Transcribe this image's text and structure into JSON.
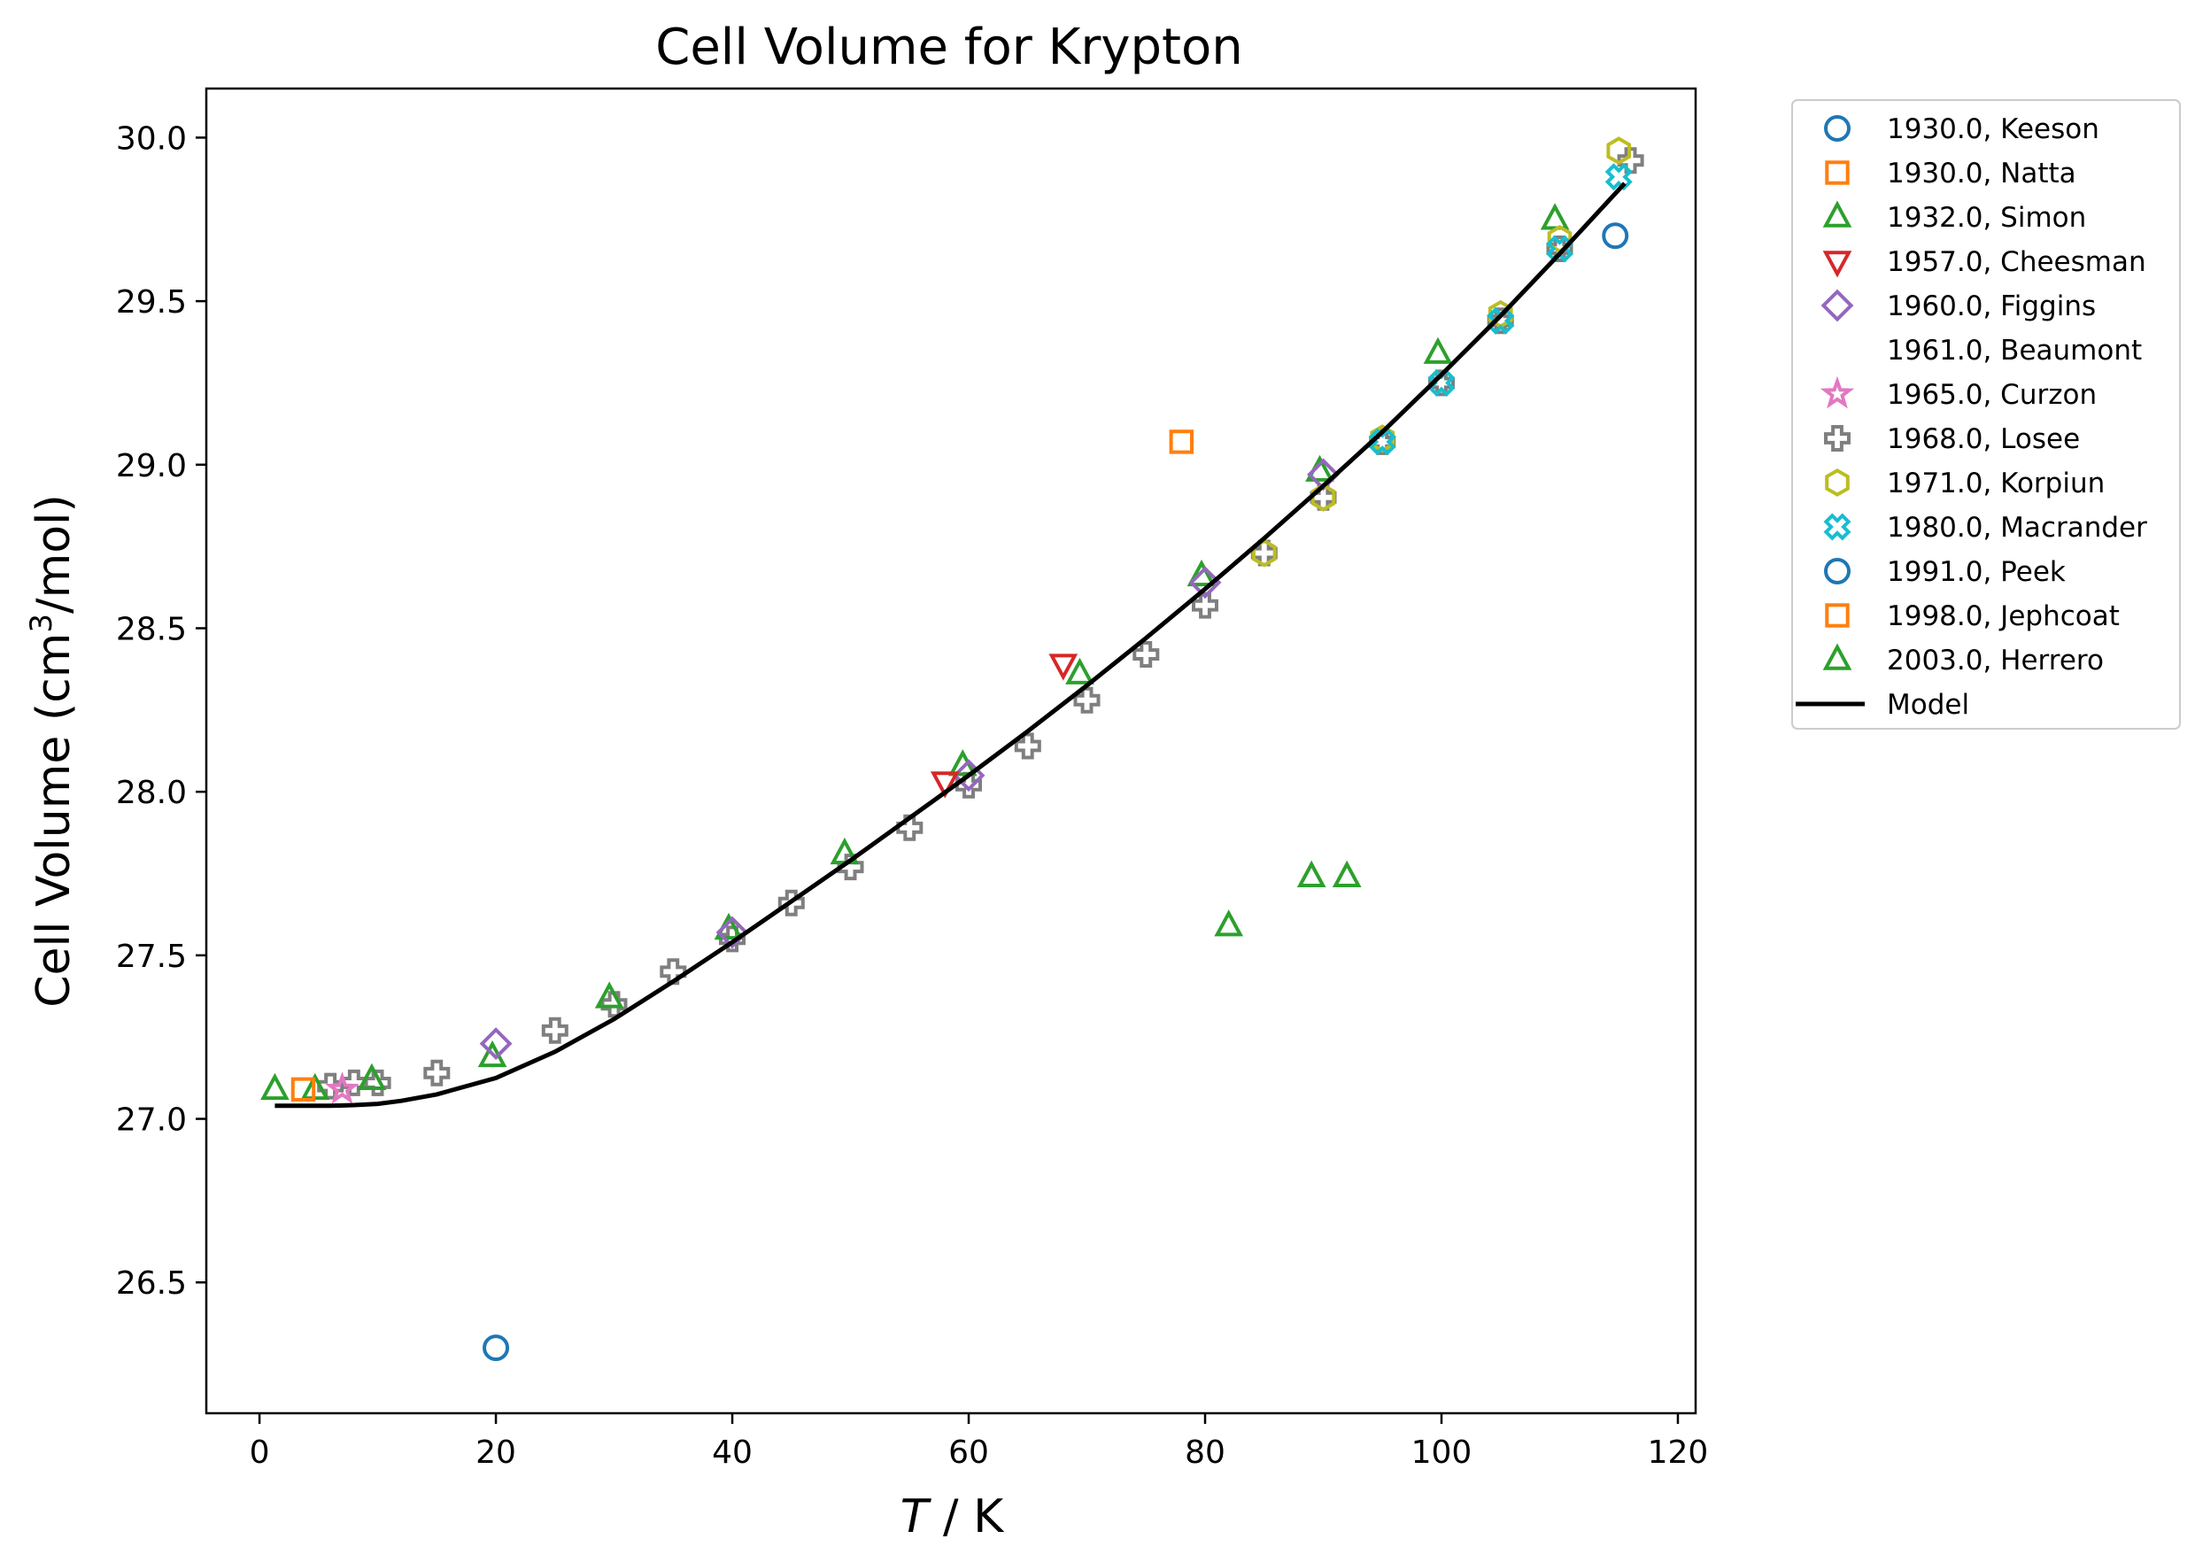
{
  "chart_data": {
    "type": "scatter",
    "title": "Cell Volume for Krypton",
    "xlabel_italic": "T",
    "xlabel_rest": " / K",
    "ylabel_main": "Cell Volume (cm",
    "ylabel_sup": "3",
    "ylabel_tail": "/mol)",
    "xlim": [
      -4.5,
      121.5
    ],
    "ylim": [
      26.1,
      30.15
    ],
    "xticks": [
      0,
      20,
      40,
      60,
      80,
      100,
      120
    ],
    "yticks": [
      26.5,
      27.0,
      27.5,
      28.0,
      28.5,
      29.0,
      29.5,
      30.0
    ],
    "xtick_labels": [
      "0",
      "20",
      "40",
      "60",
      "80",
      "100",
      "120"
    ],
    "ytick_labels": [
      "26.5",
      "27.0",
      "27.5",
      "28.0",
      "28.5",
      "29.0",
      "29.5",
      "30.0"
    ],
    "grid": false,
    "legend_position": "outside-right",
    "series": [
      {
        "name": "1930.0, Keeson",
        "marker": "circle",
        "color": "#1f77b4",
        "points": [
          [
            20,
            26.3
          ]
        ]
      },
      {
        "name": "1930.0, Natta",
        "marker": "square",
        "color": "#ff7f0e",
        "points": [
          [
            78,
            29.07
          ]
        ]
      },
      {
        "name": "1932.0, Simon",
        "marker": "triangle-up",
        "color": "#2ca02c",
        "points": [
          [
            82,
            27.59
          ],
          [
            89,
            27.74
          ],
          [
            92,
            27.74
          ]
        ]
      },
      {
        "name": "1957.0, Cheesman",
        "marker": "triangle-down",
        "color": "#d62728",
        "points": [
          [
            58,
            28.03
          ],
          [
            68,
            28.39
          ]
        ]
      },
      {
        "name": "1960.0, Figgins",
        "marker": "diamond",
        "color": "#9467bd",
        "points": [
          [
            20,
            27.23
          ],
          [
            40,
            27.57
          ],
          [
            60,
            28.05
          ],
          [
            80,
            28.64
          ],
          [
            90,
            28.97
          ]
        ]
      },
      {
        "name": "1961.0, Beaumont",
        "marker": "none",
        "color": "#8c564b",
        "points": []
      },
      {
        "name": "1965.0, Curzon",
        "marker": "star",
        "color": "#e377c2",
        "points": [
          [
            7,
            27.09
          ]
        ]
      },
      {
        "name": "1968.0, Losee",
        "marker": "plus",
        "color": "#7f7f7f",
        "points": [
          [
            6,
            27.1
          ],
          [
            8,
            27.11
          ],
          [
            10,
            27.11
          ],
          [
            15,
            27.14
          ],
          [
            25,
            27.27
          ],
          [
            30,
            27.35
          ],
          [
            35,
            27.45
          ],
          [
            40,
            27.55
          ],
          [
            45,
            27.66
          ],
          [
            50,
            27.77
          ],
          [
            55,
            27.89
          ],
          [
            60,
            28.02
          ],
          [
            65,
            28.14
          ],
          [
            70,
            28.28
          ],
          [
            75,
            28.42
          ],
          [
            80,
            28.57
          ],
          [
            85,
            28.73
          ],
          [
            90,
            28.9
          ],
          [
            95,
            29.07
          ],
          [
            100,
            29.25
          ],
          [
            105,
            29.44
          ],
          [
            110,
            29.66
          ],
          [
            116,
            29.93
          ]
        ]
      },
      {
        "name": "1971.0, Korpiun",
        "marker": "hexagon",
        "color": "#bcbd22",
        "points": [
          [
            85,
            28.73
          ],
          [
            90,
            28.9
          ],
          [
            95,
            29.08
          ],
          [
            105,
            29.46
          ],
          [
            110,
            29.69
          ],
          [
            115,
            29.96
          ]
        ]
      },
      {
        "name": "1980.0, Macrander",
        "marker": "x-thick",
        "color": "#17becf",
        "points": [
          [
            95,
            29.07
          ],
          [
            100,
            29.25
          ],
          [
            105,
            29.44
          ],
          [
            110,
            29.66
          ],
          [
            115,
            29.88
          ]
        ]
      },
      {
        "name": "1991.0, Peek",
        "marker": "circle",
        "color": "#1f77b4",
        "points": [
          [
            114.7,
            29.7
          ]
        ]
      },
      {
        "name": "1998.0, Jephcoat",
        "marker": "square",
        "color": "#ff7f0e",
        "points": [
          [
            3.7,
            27.09
          ]
        ]
      },
      {
        "name": "2003.0, Herrero",
        "marker": "triangle-up",
        "color": "#2ca02c",
        "points": [
          [
            1.3,
            27.09
          ],
          [
            4.7,
            27.09
          ],
          [
            9.5,
            27.12
          ],
          [
            19.7,
            27.19
          ],
          [
            29.6,
            27.37
          ],
          [
            39.7,
            27.58
          ],
          [
            49.5,
            27.81
          ],
          [
            59.5,
            28.08
          ],
          [
            69.4,
            28.36
          ],
          [
            79.7,
            28.66
          ],
          [
            89.7,
            28.98
          ],
          [
            99.7,
            29.34
          ],
          [
            109.6,
            29.75
          ]
        ]
      }
    ],
    "model": {
      "name": "Model",
      "color": "#000000",
      "x": [
        1.3,
        4,
        6,
        8,
        10,
        12,
        15,
        20,
        25,
        30,
        35,
        40,
        45,
        50,
        55,
        60,
        65,
        70,
        75,
        80,
        85,
        90,
        95,
        100,
        105,
        110,
        115.5
      ],
      "y": [
        27.04,
        27.04,
        27.04,
        27.042,
        27.046,
        27.055,
        27.075,
        27.125,
        27.205,
        27.305,
        27.42,
        27.54,
        27.665,
        27.79,
        27.92,
        28.05,
        28.185,
        28.325,
        28.47,
        28.62,
        28.775,
        28.935,
        29.1,
        29.275,
        29.455,
        29.645,
        29.86
      ]
    }
  }
}
